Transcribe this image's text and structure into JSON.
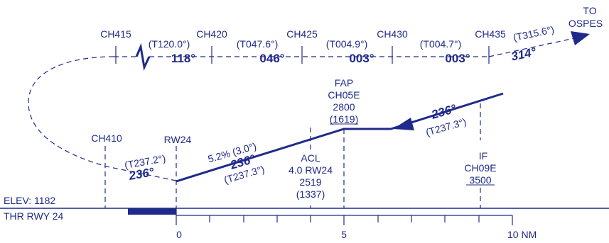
{
  "colors": {
    "chart_blue": "#1f2a8a",
    "background": "#ffffff"
  },
  "top_track": {
    "fixes": [
      "CH415",
      "CH420",
      "CH425",
      "CH430",
      "CH435"
    ],
    "true_courses": [
      "(T120.0°)",
      "(T047.6°)",
      "(T004.9°)",
      "(T004.7°)"
    ],
    "magnetic_courses": [
      "118°",
      "046°",
      "003°",
      "003°"
    ],
    "outbound_true": "(T315.6°)",
    "outbound_magnetic": "314°",
    "destination_line1": "TO",
    "destination_line2": "OSPES"
  },
  "profile": {
    "ch410": "CH410",
    "rw24": "RW24",
    "final_true": "(T237.2°)",
    "final_magnetic": "236°",
    "gradient": "5.2% (3.0°)",
    "descent_magnetic": "236°",
    "descent_true": "(T237.3°)",
    "fap": {
      "line1": "FAP",
      "line2": "CH05E",
      "line3": "2800",
      "line4": "(1619)"
    },
    "acl": {
      "line1": "ACL",
      "line2": "4.0 RW24",
      "line3": "2519",
      "line4": "(1337)"
    },
    "inbound_magnetic": "236°",
    "inbound_true": "(T237.3°)",
    "if": {
      "line1": "IF",
      "line2": "CH09E",
      "line3": "3500"
    }
  },
  "scale": {
    "elev_label": "ELEV: 1182",
    "thr_label": "THR RWY 24",
    "tick_labels": [
      "0",
      "5",
      "10 NM"
    ]
  }
}
